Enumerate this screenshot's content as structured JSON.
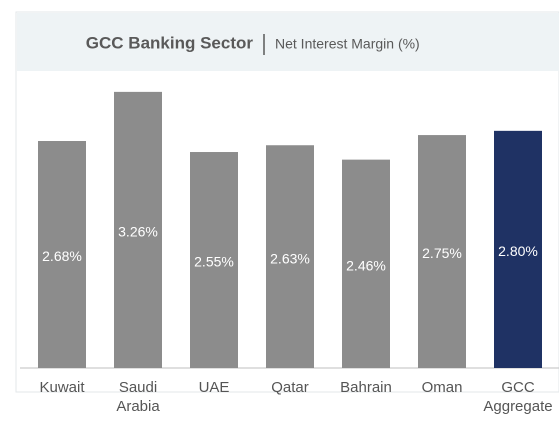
{
  "chart_data": {
    "type": "bar",
    "title": "GCC Banking Sector",
    "subtitle": "Net Interest Margin (%)",
    "categories": [
      "Kuwait",
      "Saudi Arabia",
      "UAE",
      "Qatar",
      "Bahrain",
      "Oman",
      "GCC Aggregate"
    ],
    "values": [
      2.68,
      3.26,
      2.55,
      2.63,
      2.46,
      2.75,
      2.8
    ],
    "value_labels": [
      "2.68%",
      "3.26%",
      "2.55%",
      "2.63%",
      "2.46%",
      "2.75%",
      "2.80%"
    ],
    "colors": [
      "#8c8c8c",
      "#8c8c8c",
      "#8c8c8c",
      "#8c8c8c",
      "#8c8c8c",
      "#8c8c8c",
      "#1f3264"
    ]
  }
}
